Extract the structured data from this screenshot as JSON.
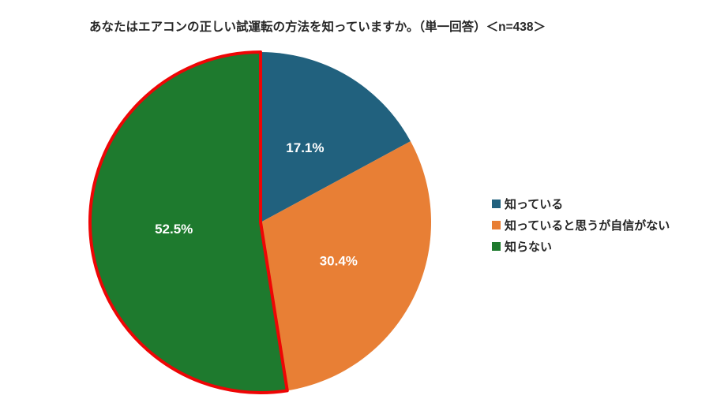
{
  "title": "あなたはエアコンの正しい試運転の方法を知っていますか。（単一回答）＜n=438＞",
  "colors": {
    "background": "#FFFFFF",
    "title_text": "#262626",
    "legend_text": "#262626",
    "label_text": "#FFFFFF",
    "highlight_outline": "#EE0505"
  },
  "chart_data": {
    "type": "pie",
    "title": "あなたはエアコンの正しい試運転の方法を知っていますか。（単一回答）＜n=438＞",
    "n_label": "n=438",
    "start_angle_deg": 0,
    "direction": "clockwise",
    "legend_position": "right",
    "slices": [
      {
        "label": "知っている",
        "value": 17.1,
        "display": "17.1%",
        "color": "#21617E",
        "outlined": false
      },
      {
        "label": "知っていると思うが自信がない",
        "value": 30.4,
        "display": "30.4%",
        "color": "#E87F35",
        "outlined": false
      },
      {
        "label": "知らない",
        "value": 52.5,
        "display": "52.5%",
        "color": "#1E7A2E",
        "outlined": true
      }
    ]
  }
}
